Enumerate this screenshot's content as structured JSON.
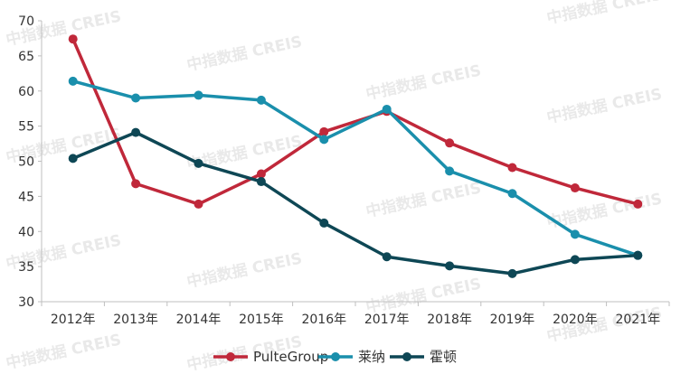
{
  "watermark": "中指数据 CREIS",
  "chart_data": {
    "type": "line",
    "categories": [
      "2012年",
      "2013年",
      "2014年",
      "2015年",
      "2016年",
      "2017年",
      "2018年",
      "2019年",
      "2020年",
      "2021年"
    ],
    "ylim": [
      30,
      70
    ],
    "yticks": [
      "30",
      "35",
      "40",
      "45",
      "50",
      "55",
      "60",
      "65",
      "70"
    ],
    "grid": false,
    "legend_position": "bottom",
    "series": [
      {
        "name": "PulteGroup",
        "color": "#c0283a",
        "values": [
          67.4,
          46.8,
          43.9,
          48.2,
          54.2,
          57.1,
          52.6,
          49.1,
          46.2,
          43.9
        ]
      },
      {
        "name": "莱纳",
        "color": "#1a8fac",
        "values": [
          61.4,
          59.0,
          59.4,
          58.7,
          53.1,
          57.4,
          48.6,
          45.4,
          39.6,
          36.6
        ]
      },
      {
        "name": "霍顿",
        "color": "#0e4755",
        "values": [
          50.4,
          54.1,
          49.7,
          47.1,
          41.2,
          36.4,
          35.1,
          34.0,
          36.0,
          36.6
        ]
      }
    ]
  }
}
